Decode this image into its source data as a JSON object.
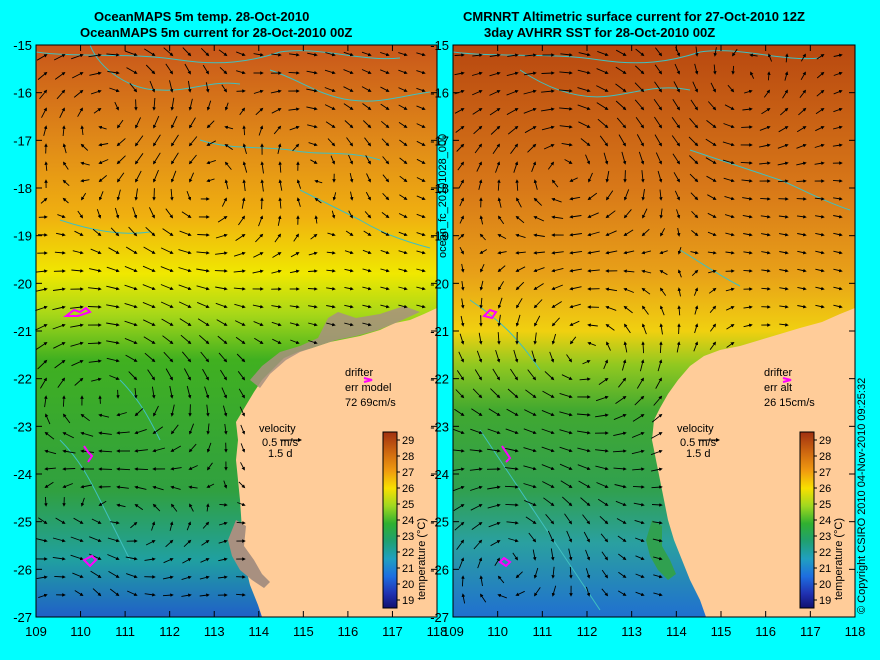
{
  "left_panel": {
    "title_line1": "OceanMAPS 5m temp. 28-Oct-2010",
    "title_line2": "OceanMAPS 5m current for 28-Oct-2010 00Z",
    "drifter_label": "drifter",
    "err_label": "err model",
    "err_value": "72 69cm/s",
    "velocity_label": "velocity",
    "velocity_scale": "0.5 m/s",
    "velocity_days": "1.5 d"
  },
  "right_panel": {
    "title_line1": "CMRNRT Altimetric surface current for 27-Oct-2010 12Z",
    "title_line2": "3day AVHRR SST for 28-Oct-2010 00Z",
    "drifter_label": "drifter",
    "err_label": "err alt",
    "err_value": "26 15cm/s",
    "velocity_label": "velocity",
    "velocity_scale": "0.5 m/s",
    "velocity_days": "1.5 d"
  },
  "center_vertical_label": "ocean_fc_20101028_000",
  "right_vertical_label": "© Copyright CSIRO 2010  04-Nov-2010 09:25:32",
  "colorbar": {
    "label": "temperature (°C)",
    "ticks": [
      "29",
      "28",
      "27",
      "26",
      "25",
      "24",
      "23",
      "22",
      "21",
      "20",
      "19"
    ]
  },
  "axes": {
    "lat_ticks": [
      "-15",
      "-16",
      "-17",
      "-18",
      "-19",
      "-20",
      "-21",
      "-22",
      "-23",
      "-24",
      "-25",
      "-26",
      "-27"
    ],
    "lon_ticks": [
      "109",
      "110",
      "111",
      "112",
      "113",
      "114",
      "115",
      "116",
      "117",
      "118"
    ],
    "lat_range": [
      -27,
      -15
    ],
    "lon_range": [
      109,
      118
    ]
  },
  "colors": {
    "background": "#00ffff",
    "land": "#ffcc99",
    "coastline": "#40c0c0",
    "drifter": "#ff00ff"
  }
}
